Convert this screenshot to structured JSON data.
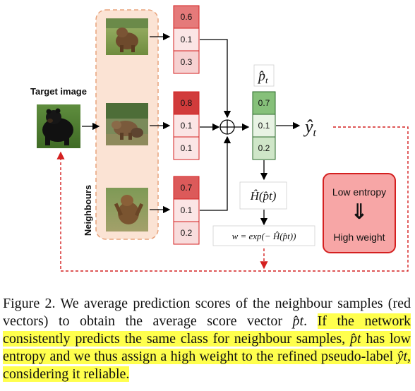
{
  "figure": {
    "target_label": "Target image",
    "neighbours_label": "Neighbours",
    "neighbour_scores": [
      {
        "values": [
          "0.6",
          "0.1",
          "0.3"
        ],
        "colors": [
          "#e57a7a",
          "#fbe5e5",
          "#f6d1d1"
        ]
      },
      {
        "values": [
          "0.8",
          "0.1",
          "0.1"
        ],
        "colors": [
          "#d13b3b",
          "#fbe5e5",
          "#fbe5e5"
        ]
      },
      {
        "values": [
          "0.7",
          "0.1",
          "0.2"
        ],
        "colors": [
          "#dc5a5a",
          "#fbe5e5",
          "#f8dcdc"
        ]
      }
    ],
    "avg_scores": {
      "values": [
        "0.7",
        "0.1",
        "0.2"
      ],
      "colors": [
        "#86c07a",
        "#e8f3e4",
        "#cfe6c8"
      ]
    },
    "p_hat_label": "p̂",
    "p_hat_sub": "t",
    "y_hat_label": "ŷ",
    "y_hat_sub": "t",
    "entropy_label": "Ĥ(p̂t)",
    "weight_formula": "w = exp(− Ĥ(p̂t))",
    "entropy_box": {
      "line1": "Low entropy",
      "arrow": "⇓",
      "line2": "High weight"
    },
    "colors": {
      "accent_red": "#d42020",
      "neighbour_bg": "#fbe3d4",
      "entropy_box_bg": "#f7a6a6"
    }
  },
  "caption": {
    "part1": "Figure 2. We average prediction scores of the neighbour samples (red vectors) to obtain the average score vector ",
    "math1": "p̂t",
    "part1_end": ". ",
    "hl1": "If the network consistently predicts the same class for neighbour samples, ",
    "math2": "p̂t",
    "hl2": " has low entropy and we thus assign a high weight to the refined pseudo-label ",
    "math3": "ŷt",
    "hl3": ", considering it reliable."
  }
}
